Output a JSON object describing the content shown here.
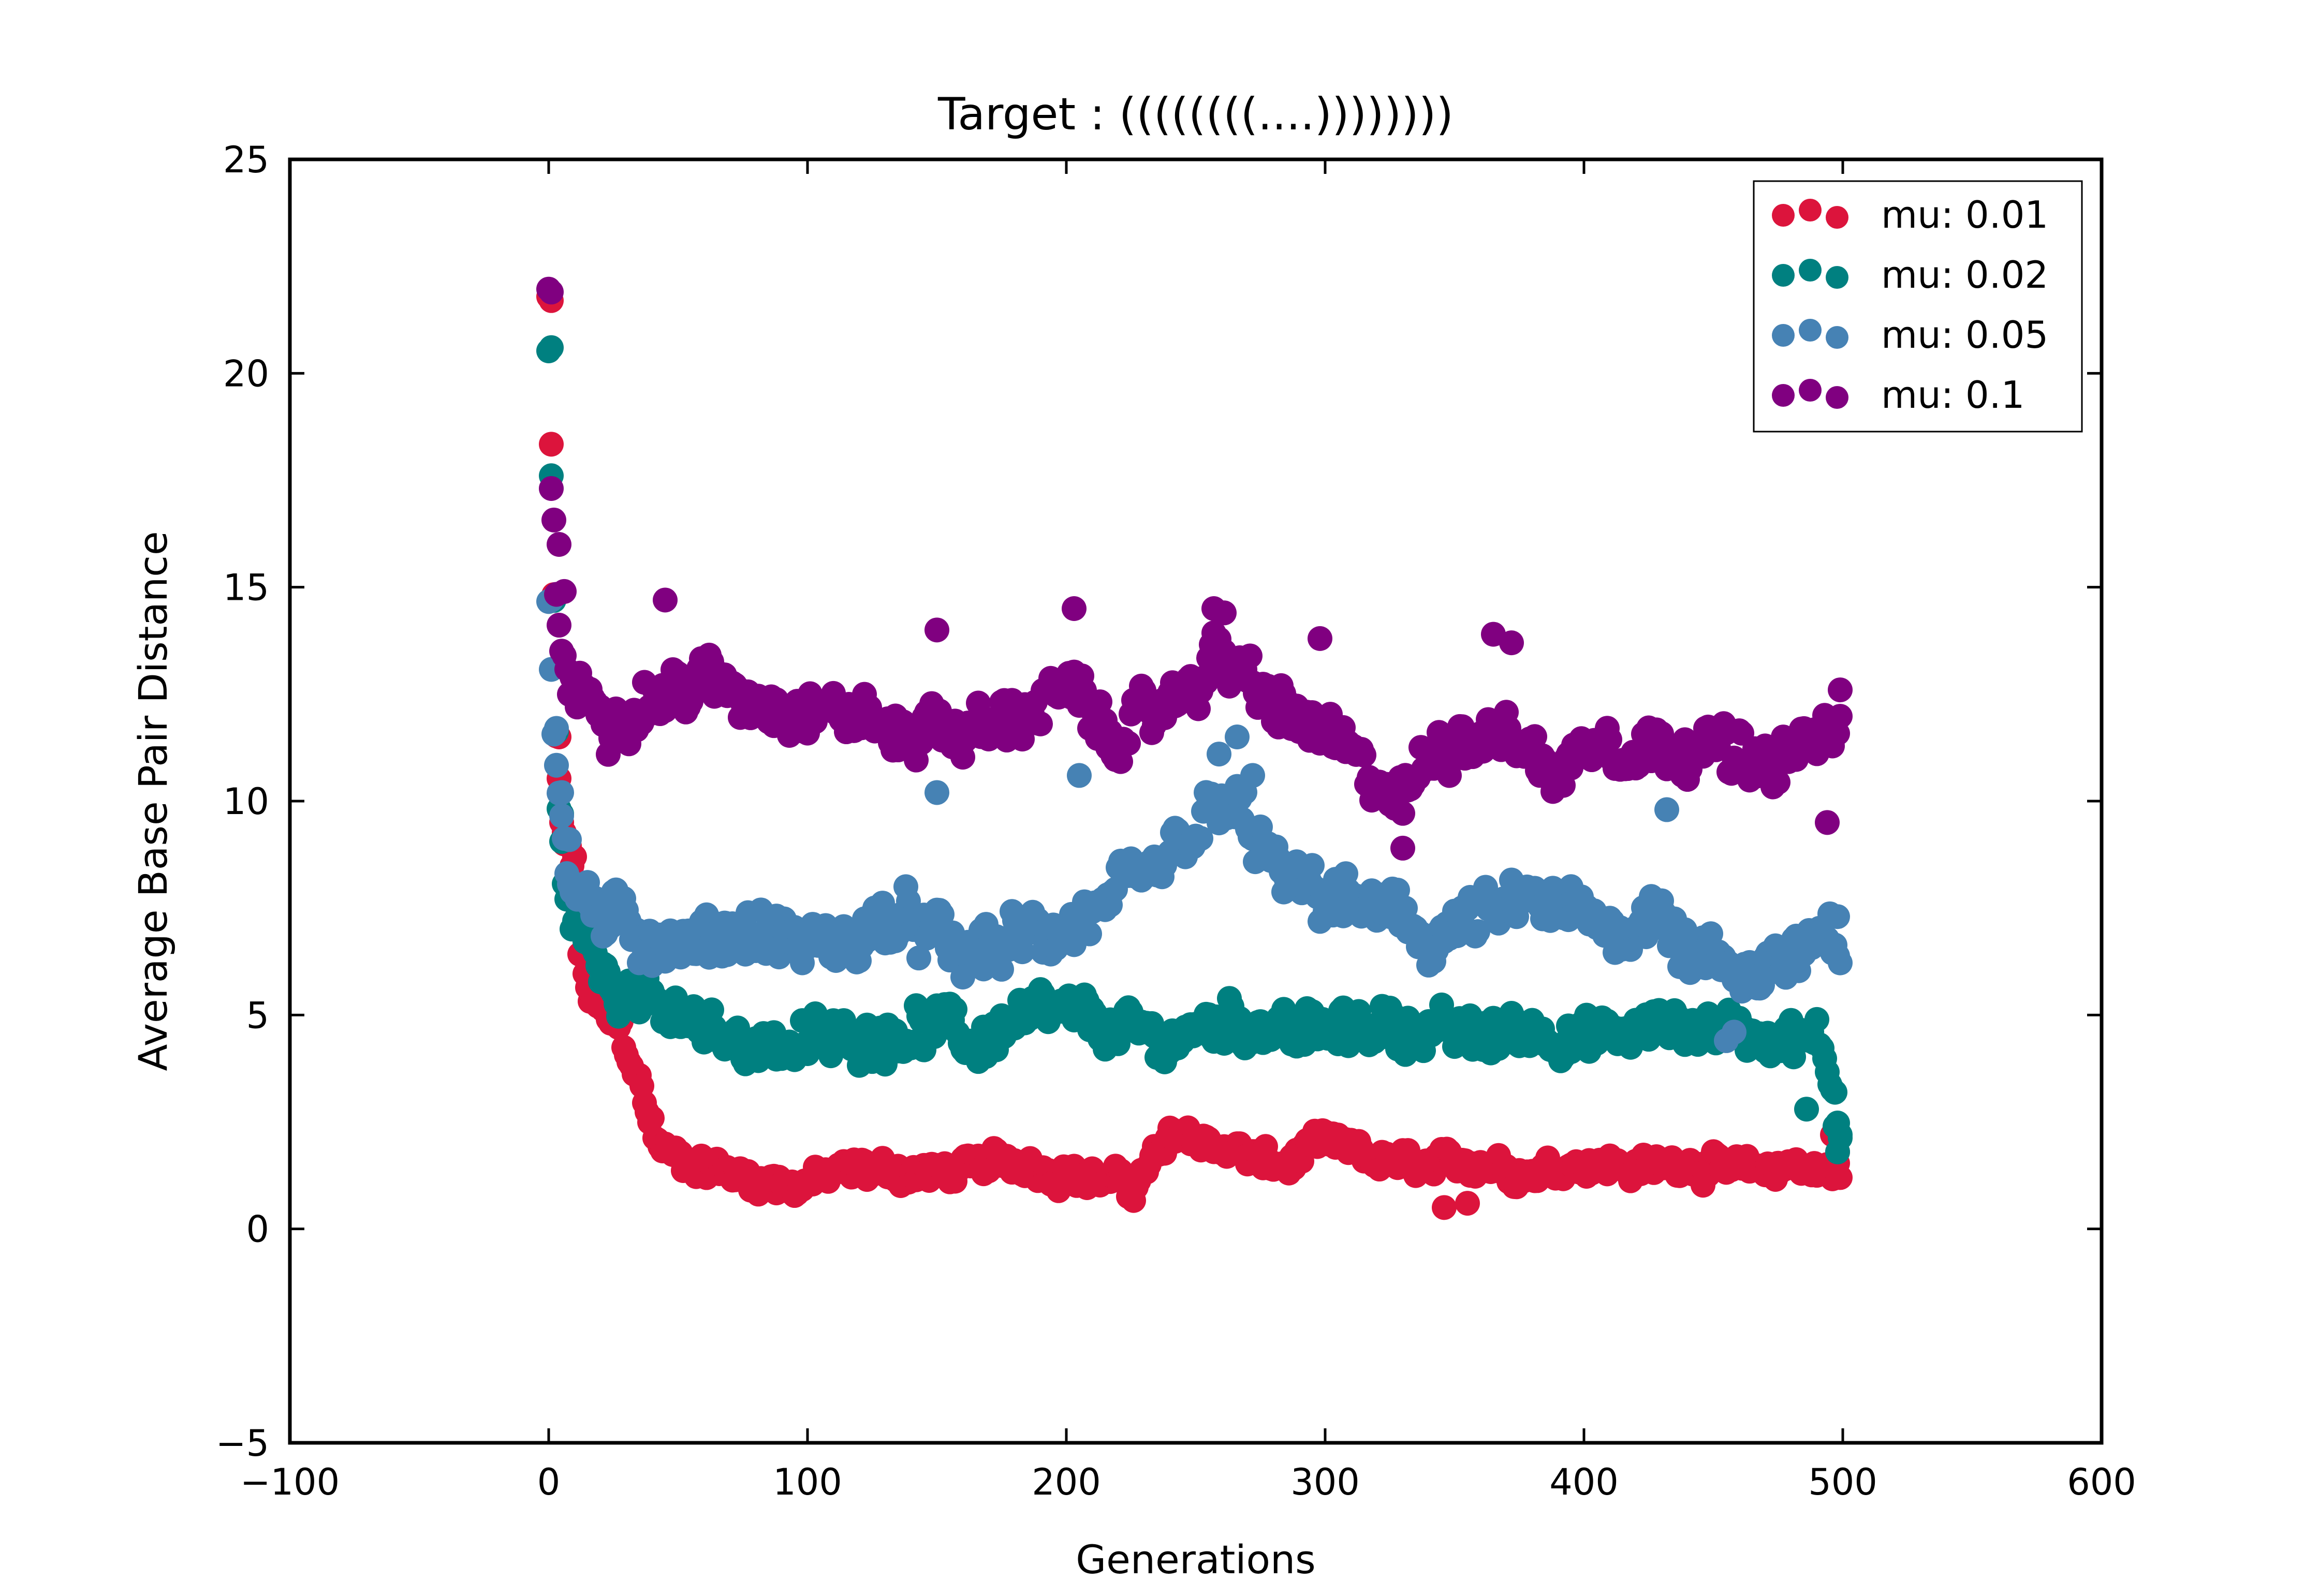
{
  "chart_data": {
    "type": "scatter",
    "title": "Target : ((((((((....))))))))",
    "xlabel": "Generations",
    "ylabel": "Average Base Pair Distance",
    "xlim": [
      -100,
      600
    ],
    "ylim": [
      -5,
      25
    ],
    "xticks": [
      -100,
      0,
      100,
      200,
      300,
      400,
      500,
      600
    ],
    "yticks": [
      -5,
      0,
      5,
      10,
      15,
      20,
      25
    ],
    "xtick_labels": [
      "−100",
      "0",
      "100",
      "200",
      "300",
      "400",
      "500",
      "600"
    ],
    "ytick_labels": [
      "−5",
      "0",
      "5",
      "10",
      "15",
      "20",
      "25"
    ],
    "grid": false,
    "legend_position": "top-right",
    "x_range": [
      0,
      499
    ],
    "series": [
      {
        "name": "mu: 0.01",
        "color": "#dc143c",
        "anchors": [
          [
            0,
            21.8
          ],
          [
            2,
            14.8
          ],
          [
            3,
            11.5
          ],
          [
            5,
            9.5
          ],
          [
            8,
            8.8
          ],
          [
            12,
            6.5
          ],
          [
            16,
            5.4
          ],
          [
            22,
            5.0
          ],
          [
            28,
            4.6
          ],
          [
            33,
            3.8
          ],
          [
            38,
            2.8
          ],
          [
            42,
            2.0
          ],
          [
            48,
            1.7
          ],
          [
            70,
            1.3
          ],
          [
            95,
            1.0
          ],
          [
            120,
            1.4
          ],
          [
            150,
            1.3
          ],
          [
            180,
            1.6
          ],
          [
            200,
            1.3
          ],
          [
            225,
            1.0
          ],
          [
            235,
            1.7
          ],
          [
            245,
            2.3
          ],
          [
            255,
            2.0
          ],
          [
            270,
            1.7
          ],
          [
            285,
            1.4
          ],
          [
            295,
            2.0
          ],
          [
            310,
            1.8
          ],
          [
            320,
            1.6
          ],
          [
            340,
            1.4
          ],
          [
            360,
            1.6
          ],
          [
            380,
            1.3
          ],
          [
            400,
            1.6
          ],
          [
            420,
            1.4
          ],
          [
            440,
            1.6
          ],
          [
            460,
            1.3
          ],
          [
            480,
            1.5
          ],
          [
            490,
            1.4
          ],
          [
            499,
            1.3
          ]
        ],
        "noise": 0.45,
        "extra_points": [
          [
            1,
            21.7
          ],
          [
            4,
            11.5
          ],
          [
            6,
            9.0
          ],
          [
            10,
            8.7
          ],
          [
            346,
            0.5
          ],
          [
            355,
            0.6
          ],
          [
            496,
            2.2
          ],
          [
            498,
            1.8
          ]
        ]
      },
      {
        "name": "mu: 0.02",
        "color": "#008080",
        "anchors": [
          [
            0,
            20.5
          ],
          [
            2,
            14.7
          ],
          [
            3,
            11.6
          ],
          [
            4,
            9.8
          ],
          [
            6,
            8.2
          ],
          [
            10,
            7.2
          ],
          [
            15,
            6.6
          ],
          [
            20,
            6.2
          ],
          [
            30,
            5.6
          ],
          [
            45,
            5.0
          ],
          [
            65,
            4.5
          ],
          [
            90,
            4.3
          ],
          [
            110,
            4.4
          ],
          [
            130,
            4.6
          ],
          [
            150,
            4.8
          ],
          [
            165,
            4.3
          ],
          [
            180,
            4.9
          ],
          [
            200,
            5.0
          ],
          [
            220,
            4.6
          ],
          [
            240,
            4.4
          ],
          [
            260,
            4.9
          ],
          [
            280,
            4.8
          ],
          [
            300,
            4.5
          ],
          [
            320,
            4.8
          ],
          [
            340,
            4.6
          ],
          [
            360,
            4.5
          ],
          [
            380,
            4.7
          ],
          [
            400,
            4.4
          ],
          [
            420,
            4.6
          ],
          [
            440,
            4.8
          ],
          [
            460,
            4.6
          ],
          [
            480,
            4.5
          ],
          [
            490,
            4.3
          ],
          [
            497,
            3.3
          ],
          [
            499,
            2.4
          ]
        ],
        "noise": 0.75,
        "extra_points": [
          [
            1,
            20.6
          ],
          [
            5,
            9.7
          ],
          [
            8,
            7.8
          ],
          [
            486,
            2.8
          ],
          [
            498,
            1.8
          ],
          [
            497,
            2.4
          ],
          [
            499,
            2.2
          ]
        ]
      },
      {
        "name": "mu: 0.05",
        "color": "#4682b4",
        "anchors": [
          [
            0,
            14.7
          ],
          [
            2,
            11.6
          ],
          [
            4,
            10.2
          ],
          [
            6,
            9.2
          ],
          [
            10,
            8.0
          ],
          [
            20,
            7.3
          ],
          [
            35,
            6.9
          ],
          [
            55,
            6.6
          ],
          [
            75,
            7.0
          ],
          [
            95,
            6.7
          ],
          [
            110,
            6.5
          ],
          [
            130,
            7.2
          ],
          [
            145,
            7.0
          ],
          [
            160,
            6.4
          ],
          [
            180,
            6.7
          ],
          [
            200,
            7.0
          ],
          [
            215,
            7.5
          ],
          [
            230,
            8.0
          ],
          [
            245,
            9.0
          ],
          [
            255,
            9.6
          ],
          [
            265,
            9.8
          ],
          [
            275,
            9.0
          ],
          [
            285,
            8.0
          ],
          [
            300,
            7.8
          ],
          [
            320,
            7.4
          ],
          [
            340,
            6.8
          ],
          [
            360,
            7.2
          ],
          [
            380,
            7.6
          ],
          [
            400,
            7.2
          ],
          [
            420,
            7.0
          ],
          [
            430,
            7.8
          ],
          [
            440,
            6.4
          ],
          [
            460,
            6.0
          ],
          [
            480,
            6.4
          ],
          [
            499,
            6.6
          ]
        ],
        "noise": 0.9,
        "extra_points": [
          [
            1,
            14.7
          ],
          [
            3,
            11.7
          ],
          [
            5,
            10.2
          ],
          [
            8,
            9.1
          ],
          [
            150,
            10.2
          ],
          [
            205,
            10.6
          ],
          [
            221,
            11.4
          ],
          [
            259,
            11.1
          ],
          [
            266,
            11.5
          ],
          [
            272,
            10.6
          ],
          [
            432,
            9.8
          ],
          [
            458,
            4.6
          ],
          [
            455,
            4.4
          ],
          [
            498,
            7.3
          ]
        ]
      },
      {
        "name": "mu: 0.1",
        "color": "#800080",
        "anchors": [
          [
            0,
            22.0
          ],
          [
            1,
            17.3
          ],
          [
            2,
            16.5
          ],
          [
            3,
            14.8
          ],
          [
            5,
            13.5
          ],
          [
            8,
            12.8
          ],
          [
            15,
            12.4
          ],
          [
            25,
            12.0
          ],
          [
            40,
            12.4
          ],
          [
            60,
            12.8
          ],
          [
            80,
            12.4
          ],
          [
            100,
            12.2
          ],
          [
            120,
            12.0
          ],
          [
            135,
            11.5
          ],
          [
            150,
            11.8
          ],
          [
            165,
            11.6
          ],
          [
            180,
            12.0
          ],
          [
            200,
            12.6
          ],
          [
            215,
            11.6
          ],
          [
            230,
            11.8
          ],
          [
            245,
            12.6
          ],
          [
            258,
            13.4
          ],
          [
            270,
            12.8
          ],
          [
            285,
            12.0
          ],
          [
            300,
            11.6
          ],
          [
            315,
            10.6
          ],
          [
            330,
            10.0
          ],
          [
            345,
            11.4
          ],
          [
            360,
            11.6
          ],
          [
            375,
            11.4
          ],
          [
            390,
            10.6
          ],
          [
            405,
            11.6
          ],
          [
            420,
            11.2
          ],
          [
            440,
            11.4
          ],
          [
            455,
            11.2
          ],
          [
            470,
            10.6
          ],
          [
            485,
            11.4
          ],
          [
            499,
            11.6
          ]
        ],
        "noise": 0.85,
        "extra_points": [
          [
            1,
            21.9
          ],
          [
            4,
            16.0
          ],
          [
            6,
            14.9
          ],
          [
            45,
            14.7
          ],
          [
            150,
            14.0
          ],
          [
            203,
            14.5
          ],
          [
            257,
            14.5
          ],
          [
            261,
            14.4
          ],
          [
            298,
            13.8
          ],
          [
            365,
            13.9
          ],
          [
            372,
            13.7
          ],
          [
            499,
            12.6
          ],
          [
            494,
            9.5
          ],
          [
            330,
            8.9
          ]
        ]
      }
    ]
  }
}
